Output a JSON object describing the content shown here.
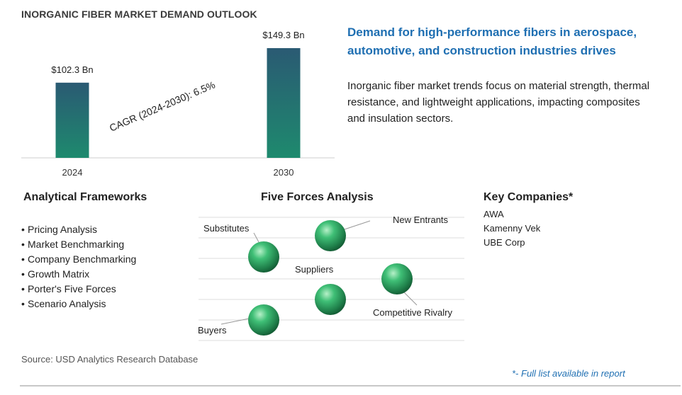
{
  "title": "INORGANIC FIBER MARKET DEMAND OUTLOOK",
  "headline": "Demand for high-performance fibers in aerospace, automotive, and construction industries drives",
  "summary": "Inorganic fiber market trends focus on material strength, thermal resistance, and lightweight applications, impacting composites and insulation sectors.",
  "chart_data": {
    "type": "bar",
    "categories": [
      "2024",
      "2030"
    ],
    "values": [
      102.3,
      149.3
    ],
    "value_labels": [
      "$102.3  Bn",
      "$149.3  Bn"
    ],
    "annotation": "CAGR (2024-2030):  6.5%",
    "xlabel": "",
    "ylabel": "",
    "ylim": [
      0,
      149.3
    ],
    "grid": false,
    "legend": "none",
    "colors": {
      "bar_top": "#2a5a73",
      "bar_bottom": "#1e8a6e"
    }
  },
  "frameworks": {
    "title": "Analytical Frameworks",
    "items": [
      "Pricing Analysis",
      "Market Benchmarking",
      "Company Benchmarking",
      "Growth Matrix",
      "Porter's Five Forces",
      "Scenario Analysis"
    ]
  },
  "forces": {
    "title": "Five Forces Analysis",
    "labels": {
      "substitutes": "Substitutes",
      "new_entrants": "New Entrants",
      "suppliers": "Suppliers",
      "competitive_rivalry": "Competitive Rivalry",
      "buyers": "Buyers"
    },
    "sphere_color": "#2e9e62"
  },
  "companies": {
    "title": "Key Companies*",
    "items": [
      "AWA",
      "Kamenny Vek",
      "UBE Corp"
    ]
  },
  "source": "Source: USD Analytics Research Database",
  "footnote": "*- Full list available in report"
}
